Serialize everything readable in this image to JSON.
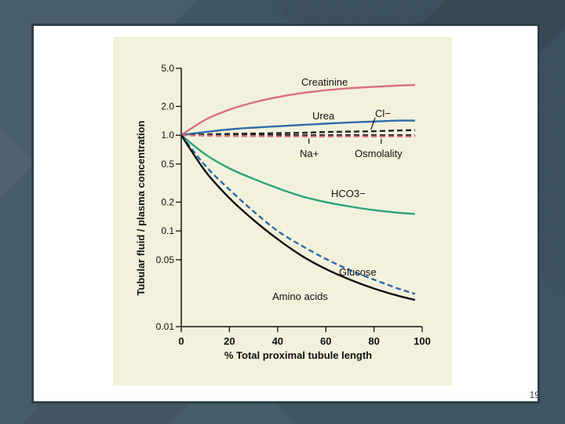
{
  "slide": {
    "page_number": "19"
  },
  "chart_data": {
    "type": "line",
    "title": "",
    "xlabel": "% Total proximal tubule length",
    "ylabel": "Tubular fluid / plasma concentration",
    "xlim": [
      0,
      100
    ],
    "ylim": [
      0.01,
      5.0
    ],
    "y_scale": "log",
    "grid": false,
    "x_ticks": [
      0,
      20,
      40,
      60,
      80,
      100
    ],
    "y_ticks": [
      {
        "value": 0.01,
        "label": "0.01"
      },
      {
        "value": 0.05,
        "label": "0.05"
      },
      {
        "value": 0.1,
        "label": "0.1"
      },
      {
        "value": 0.2,
        "label": "0.2"
      },
      {
        "value": 0.5,
        "label": "0.5"
      },
      {
        "value": 1.0,
        "label": "1.0"
      },
      {
        "value": 2.0,
        "label": "2.0"
      },
      {
        "value": 5.0,
        "label": "5.0"
      }
    ],
    "x": [
      0,
      10,
      20,
      30,
      40,
      50,
      60,
      70,
      80,
      90,
      97
    ],
    "series": [
      {
        "name": "Creatinine",
        "color": "#d9707a",
        "dash": false,
        "values": [
          1.0,
          1.45,
          1.85,
          2.2,
          2.5,
          2.75,
          2.95,
          3.1,
          3.2,
          3.3,
          3.35
        ]
      },
      {
        "name": "Urea",
        "color": "#2e6aa8",
        "dash": false,
        "values": [
          1.0,
          1.08,
          1.15,
          1.2,
          1.24,
          1.28,
          1.32,
          1.36,
          1.39,
          1.42,
          1.42
        ]
      },
      {
        "name": "Cl−",
        "color": "#222222",
        "dash": true,
        "values": [
          1.0,
          1.02,
          1.03,
          1.04,
          1.05,
          1.06,
          1.08,
          1.09,
          1.1,
          1.12,
          1.13
        ]
      },
      {
        "name": "Na+",
        "color": "#222222",
        "dash": true,
        "values": [
          1.0,
          1.0,
          1.0,
          1.0,
          1.0,
          1.0,
          1.0,
          1.0,
          1.0,
          1.0,
          1.0
        ]
      },
      {
        "name": "Osmolality",
        "color": "#d9707a",
        "dash": true,
        "values": [
          1.0,
          0.99,
          0.98,
          0.98,
          0.97,
          0.97,
          0.97,
          0.97,
          0.97,
          0.97,
          0.97
        ]
      },
      {
        "name": "HCO3−",
        "color": "#2aa37a",
        "dash": false,
        "values": [
          1.0,
          0.63,
          0.45,
          0.35,
          0.28,
          0.23,
          0.2,
          0.18,
          0.165,
          0.155,
          0.15
        ]
      },
      {
        "name": "Glucose",
        "color": "#2e6aa8",
        "dash": true,
        "values": [
          1.0,
          0.48,
          0.27,
          0.16,
          0.1,
          0.07,
          0.051,
          0.039,
          0.031,
          0.025,
          0.022
        ]
      },
      {
        "name": "Amino acids",
        "color": "#111111",
        "dash": false,
        "values": [
          1.0,
          0.42,
          0.22,
          0.13,
          0.082,
          0.055,
          0.04,
          0.031,
          0.025,
          0.021,
          0.019
        ]
      }
    ],
    "annotations": [
      "Creatinine",
      "Urea",
      "Cl−",
      "Na+",
      "Osmolality",
      "HCO3−",
      "Glucose",
      "Amino acids"
    ]
  }
}
